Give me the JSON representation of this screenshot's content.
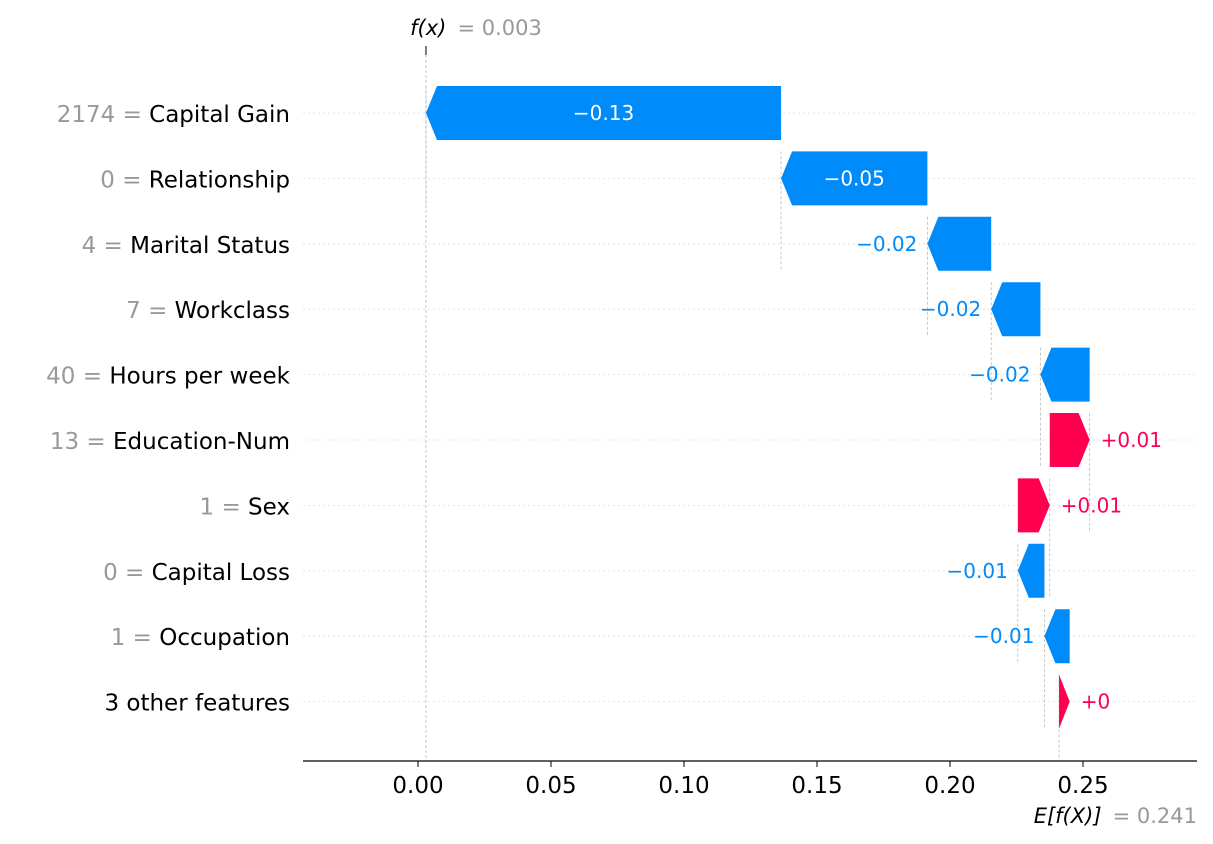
{
  "chart_data": {
    "type": "waterfall",
    "fx": {
      "label": "f(x)",
      "value_text": "= 0.003",
      "value": 0.003
    },
    "efx": {
      "label": "E[f(X)]",
      "value_text": "= 0.241",
      "value": 0.241
    },
    "xlim": [
      -0.042,
      0.292
    ],
    "xticks": [
      0.0,
      0.05,
      0.1,
      0.15,
      0.2,
      0.25
    ],
    "xtick_labels": [
      "0.00",
      "0.05",
      "0.10",
      "0.15",
      "0.20",
      "0.25"
    ],
    "features": [
      {
        "value": "2174",
        "name": "Capital Gain",
        "start": 0.1365,
        "end": 0.003,
        "label": "−0.13"
      },
      {
        "value": "0",
        "name": "Relationship",
        "start": 0.1915,
        "end": 0.1365,
        "label": "−0.05"
      },
      {
        "value": "4",
        "name": "Marital Status",
        "start": 0.2155,
        "end": 0.1915,
        "label": "−0.02"
      },
      {
        "value": "7",
        "name": "Workclass",
        "start": 0.234,
        "end": 0.2155,
        "label": "−0.02"
      },
      {
        "value": "40",
        "name": "Hours per week",
        "start": 0.2525,
        "end": 0.234,
        "label": "−0.02"
      },
      {
        "value": "13",
        "name": "Education-Num",
        "start": 0.2375,
        "end": 0.2525,
        "label": "+0.01"
      },
      {
        "value": "1",
        "name": "Sex",
        "start": 0.2255,
        "end": 0.2375,
        "label": "+0.01"
      },
      {
        "value": "0",
        "name": "Capital Loss",
        "start": 0.2355,
        "end": 0.2255,
        "label": "−0.01"
      },
      {
        "value": "1",
        "name": "Occupation",
        "start": 0.245,
        "end": 0.2355,
        "label": "−0.01"
      },
      {
        "value": "",
        "name": "3 other features",
        "start": 0.241,
        "end": 0.245,
        "label": "+0"
      }
    ],
    "colors": {
      "positive": "#ff0051",
      "negative": "#008bfb",
      "value_text": "#999999"
    }
  }
}
